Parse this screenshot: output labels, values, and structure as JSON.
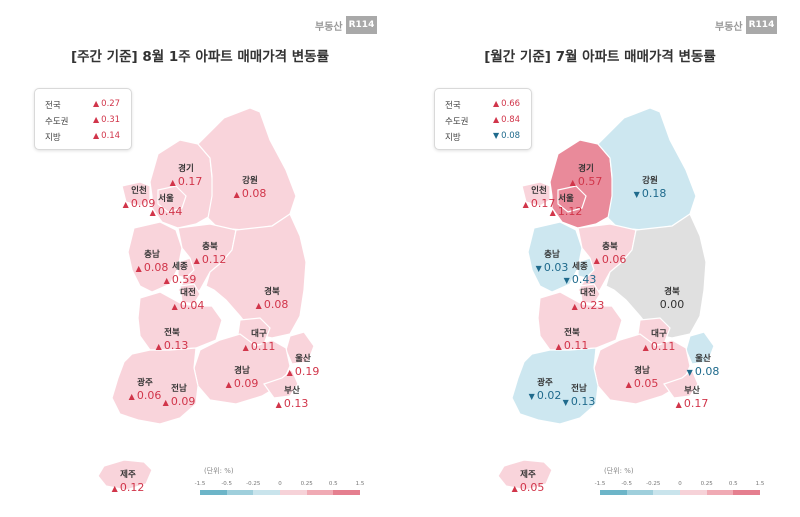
{
  "brand": {
    "text": "부동산",
    "badge": "R114"
  },
  "colors": {
    "up": "#d1354a",
    "down": "#1f6a8c",
    "scale": [
      "#6db5c8",
      "#9fcfdc",
      "#c9e4ec",
      "#f6d2d8",
      "#f0aab4",
      "#e57f8f"
    ],
    "fills": {
      "up_light": "#f9d4db",
      "up_mid": "#f0aab4",
      "up_strong": "#e98a9a",
      "down_light": "#cde7f0",
      "flat": "#e0e0e0"
    }
  },
  "scale_ticks": [
    "-1.5",
    "-0.5",
    "-0.25",
    "0",
    "0.25",
    "0.5",
    "1.5"
  ],
  "unit_label": "(단위: %)",
  "panels": [
    {
      "id": "left",
      "title": "[주간 기준] 8월 1주 아파트 매매가격 변동률",
      "legend": [
        {
          "name": "전국",
          "dir": "up",
          "value": "0.27"
        },
        {
          "name": "수도권",
          "dir": "up",
          "value": "0.31"
        },
        {
          "name": "지방",
          "dir": "up",
          "value": "0.14"
        }
      ],
      "regions": [
        {
          "key": "gyeonggi",
          "name": "경기",
          "dir": "up",
          "value": "0.17",
          "fill": "up_light"
        },
        {
          "key": "incheon",
          "name": "인천",
          "dir": "up",
          "value": "0.09",
          "fill": "up_light"
        },
        {
          "key": "seoul",
          "name": "서울",
          "dir": "up",
          "value": "0.44",
          "fill": "up_light"
        },
        {
          "key": "gangwon",
          "name": "강원",
          "dir": "up",
          "value": "0.08",
          "fill": "up_light"
        },
        {
          "key": "chungnam",
          "name": "충남",
          "dir": "up",
          "value": "0.08",
          "fill": "up_light"
        },
        {
          "key": "sejong",
          "name": "세종",
          "dir": "up",
          "value": "0.59",
          "fill": "up_light"
        },
        {
          "key": "chungbuk",
          "name": "충북",
          "dir": "up",
          "value": "0.12",
          "fill": "up_light"
        },
        {
          "key": "daejeon",
          "name": "대전",
          "dir": "up",
          "value": "0.04",
          "fill": "up_light"
        },
        {
          "key": "gyeongbuk",
          "name": "경북",
          "dir": "up",
          "value": "0.08",
          "fill": "up_light"
        },
        {
          "key": "jeonbuk",
          "name": "전북",
          "dir": "up",
          "value": "0.13",
          "fill": "up_light"
        },
        {
          "key": "daegu",
          "name": "대구",
          "dir": "up",
          "value": "0.11",
          "fill": "up_light"
        },
        {
          "key": "ulsan",
          "name": "울산",
          "dir": "up",
          "value": "0.19",
          "fill": "up_light"
        },
        {
          "key": "gyeongnam",
          "name": "경남",
          "dir": "up",
          "value": "0.09",
          "fill": "up_light"
        },
        {
          "key": "gwangju",
          "name": "광주",
          "dir": "up",
          "value": "0.06",
          "fill": "up_light"
        },
        {
          "key": "jeonnam",
          "name": "전남",
          "dir": "up",
          "value": "0.09",
          "fill": "up_light"
        },
        {
          "key": "busan",
          "name": "부산",
          "dir": "up",
          "value": "0.13",
          "fill": "up_light"
        },
        {
          "key": "jeju",
          "name": "제주",
          "dir": "up",
          "value": "0.12",
          "fill": "up_light"
        }
      ]
    },
    {
      "id": "right",
      "title": "[월간 기준] 7월 아파트 매매가격 변동률",
      "legend": [
        {
          "name": "전국",
          "dir": "up",
          "value": "0.66"
        },
        {
          "name": "수도권",
          "dir": "up",
          "value": "0.84"
        },
        {
          "name": "지방",
          "dir": "down",
          "value": "0.08"
        }
      ],
      "regions": [
        {
          "key": "gyeonggi",
          "name": "경기",
          "dir": "up",
          "value": "0.57",
          "fill": "up_strong"
        },
        {
          "key": "incheon",
          "name": "인천",
          "dir": "up",
          "value": "0.17",
          "fill": "up_light"
        },
        {
          "key": "seoul",
          "name": "서울",
          "dir": "up",
          "value": "1.12",
          "fill": "up_strong"
        },
        {
          "key": "gangwon",
          "name": "강원",
          "dir": "down",
          "value": "0.18",
          "fill": "down_light"
        },
        {
          "key": "chungnam",
          "name": "충남",
          "dir": "down",
          "value": "0.03",
          "fill": "down_light"
        },
        {
          "key": "sejong",
          "name": "세종",
          "dir": "down",
          "value": "0.43",
          "fill": "down_light"
        },
        {
          "key": "chungbuk",
          "name": "충북",
          "dir": "up",
          "value": "0.06",
          "fill": "up_light"
        },
        {
          "key": "daejeon",
          "name": "대전",
          "dir": "up",
          "value": "0.23",
          "fill": "up_light"
        },
        {
          "key": "gyeongbuk",
          "name": "경북",
          "dir": "flat",
          "value": "0.00",
          "fill": "flat"
        },
        {
          "key": "jeonbuk",
          "name": "전북",
          "dir": "up",
          "value": "0.11",
          "fill": "up_light"
        },
        {
          "key": "daegu",
          "name": "대구",
          "dir": "up",
          "value": "0.11",
          "fill": "up_light"
        },
        {
          "key": "ulsan",
          "name": "울산",
          "dir": "down",
          "value": "0.08",
          "fill": "down_light"
        },
        {
          "key": "gyeongnam",
          "name": "경남",
          "dir": "up",
          "value": "0.05",
          "fill": "up_light"
        },
        {
          "key": "gwangju",
          "name": "광주",
          "dir": "down",
          "value": "0.02",
          "fill": "down_light"
        },
        {
          "key": "jeonnam",
          "name": "전남",
          "dir": "down",
          "value": "0.13",
          "fill": "down_light"
        },
        {
          "key": "busan",
          "name": "부산",
          "dir": "up",
          "value": "0.17",
          "fill": "up_light"
        },
        {
          "key": "jeju",
          "name": "제주",
          "dir": "up",
          "value": "0.05",
          "fill": "up_light"
        }
      ]
    }
  ]
}
